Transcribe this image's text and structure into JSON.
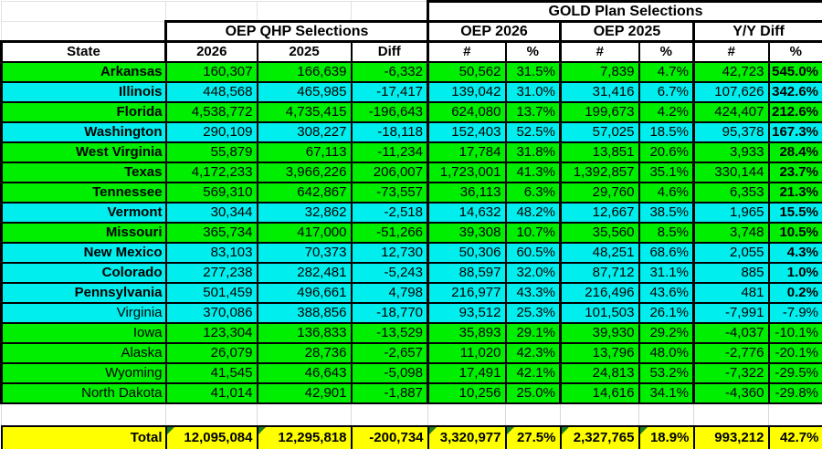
{
  "table": {
    "title_gold": "GOLD Plan Selections",
    "group_headers": {
      "oep_qhp": "OEP QHP Selections",
      "oep_2026": "OEP 2026",
      "oep_2025": "OEP 2025",
      "yy_diff": "Y/Y Diff"
    },
    "column_headers": {
      "state": "State",
      "y2026": "2026",
      "y2025": "2025",
      "diff": "Diff",
      "num": "#",
      "pct": "%"
    },
    "colors": {
      "row_green": "#00ef00",
      "row_cyan": "#00eeee",
      "total_yellow": "#ffff00",
      "corner_indicator_green": "#1b7a26",
      "border_black": "#000000"
    },
    "rows": [
      {
        "state": "Arkansas",
        "color": "green",
        "bold": true,
        "qhp26": "160,307",
        "qhp25": "166,639",
        "diff": "-6,332",
        "g26n": "50,562",
        "g26p": "31.5%",
        "g25n": "7,839",
        "g25p": "4.7%",
        "yyn": "42,723",
        "yyp": "545.0%"
      },
      {
        "state": "Illinois",
        "color": "cyan",
        "bold": true,
        "qhp26": "448,568",
        "qhp25": "465,985",
        "diff": "-17,417",
        "g26n": "139,042",
        "g26p": "31.0%",
        "g25n": "31,416",
        "g25p": "6.7%",
        "yyn": "107,626",
        "yyp": "342.6%"
      },
      {
        "state": "Florida",
        "color": "green",
        "bold": true,
        "qhp26": "4,538,772",
        "qhp25": "4,735,415",
        "diff": "-196,643",
        "g26n": "624,080",
        "g26p": "13.7%",
        "g25n": "199,673",
        "g25p": "4.2%",
        "yyn": "424,407",
        "yyp": "212.6%"
      },
      {
        "state": "Washington",
        "color": "cyan",
        "bold": true,
        "qhp26": "290,109",
        "qhp25": "308,227",
        "diff": "-18,118",
        "g26n": "152,403",
        "g26p": "52.5%",
        "g25n": "57,025",
        "g25p": "18.5%",
        "yyn": "95,378",
        "yyp": "167.3%"
      },
      {
        "state": "West Virginia",
        "color": "green",
        "bold": true,
        "qhp26": "55,879",
        "qhp25": "67,113",
        "diff": "-11,234",
        "g26n": "17,784",
        "g26p": "31.8%",
        "g25n": "13,851",
        "g25p": "20.6%",
        "yyn": "3,933",
        "yyp": "28.4%"
      },
      {
        "state": "Texas",
        "color": "green",
        "bold": true,
        "qhp26": "4,172,233",
        "qhp25": "3,966,226",
        "diff": "206,007",
        "g26n": "1,723,001",
        "g26p": "41.3%",
        "g25n": "1,392,857",
        "g25p": "35.1%",
        "yyn": "330,144",
        "yyp": "23.7%"
      },
      {
        "state": "Tennessee",
        "color": "green",
        "bold": true,
        "qhp26": "569,310",
        "qhp25": "642,867",
        "diff": "-73,557",
        "g26n": "36,113",
        "g26p": "6.3%",
        "g25n": "29,760",
        "g25p": "4.6%",
        "yyn": "6,353",
        "yyp": "21.3%"
      },
      {
        "state": "Vermont",
        "color": "cyan",
        "bold": true,
        "qhp26": "30,344",
        "qhp25": "32,862",
        "diff": "-2,518",
        "g26n": "14,632",
        "g26p": "48.2%",
        "g25n": "12,667",
        "g25p": "38.5%",
        "yyn": "1,965",
        "yyp": "15.5%"
      },
      {
        "state": "Missouri",
        "color": "green",
        "bold": true,
        "qhp26": "365,734",
        "qhp25": "417,000",
        "diff": "-51,266",
        "g26n": "39,308",
        "g26p": "10.7%",
        "g25n": "35,560",
        "g25p": "8.5%",
        "yyn": "3,748",
        "yyp": "10.5%"
      },
      {
        "state": "New Mexico",
        "color": "cyan",
        "bold": true,
        "qhp26": "83,103",
        "qhp25": "70,373",
        "diff": "12,730",
        "g26n": "50,306",
        "g26p": "60.5%",
        "g25n": "48,251",
        "g25p": "68.6%",
        "yyn": "2,055",
        "yyp": "4.3%"
      },
      {
        "state": "Colorado",
        "color": "cyan",
        "bold": true,
        "qhp26": "277,238",
        "qhp25": "282,481",
        "diff": "-5,243",
        "g26n": "88,597",
        "g26p": "32.0%",
        "g25n": "87,712",
        "g25p": "31.1%",
        "yyn": "885",
        "yyp": "1.0%"
      },
      {
        "state": "Pennsylvania",
        "color": "cyan",
        "bold": true,
        "qhp26": "501,459",
        "qhp25": "496,661",
        "diff": "4,798",
        "g26n": "216,977",
        "g26p": "43.3%",
        "g25n": "216,496",
        "g25p": "43.6%",
        "yyn": "481",
        "yyp": "0.2%"
      },
      {
        "state": "Virginia",
        "color": "cyan",
        "bold": false,
        "qhp26": "370,086",
        "qhp25": "388,856",
        "diff": "-18,770",
        "g26n": "93,512",
        "g26p": "25.3%",
        "g25n": "101,503",
        "g25p": "26.1%",
        "yyn": "-7,991",
        "yyp": "-7.9%"
      },
      {
        "state": "Iowa",
        "color": "green",
        "bold": false,
        "qhp26": "123,304",
        "qhp25": "136,833",
        "diff": "-13,529",
        "g26n": "35,893",
        "g26p": "29.1%",
        "g25n": "39,930",
        "g25p": "29.2%",
        "yyn": "-4,037",
        "yyp": "-10.1%"
      },
      {
        "state": "Alaska",
        "color": "green",
        "bold": false,
        "qhp26": "26,079",
        "qhp25": "28,736",
        "diff": "-2,657",
        "g26n": "11,020",
        "g26p": "42.3%",
        "g25n": "13,796",
        "g25p": "48.0%",
        "yyn": "-2,776",
        "yyp": "-20.1%"
      },
      {
        "state": "Wyoming",
        "color": "green",
        "bold": false,
        "qhp26": "41,545",
        "qhp25": "46,643",
        "diff": "-5,098",
        "g26n": "17,491",
        "g26p": "42.1%",
        "g25n": "24,813",
        "g25p": "53.2%",
        "yyn": "-7,322",
        "yyp": "-29.5%"
      },
      {
        "state": "North Dakota",
        "color": "green",
        "bold": false,
        "qhp26": "41,014",
        "qhp25": "42,901",
        "diff": "-1,887",
        "g26n": "10,256",
        "g26p": "25.0%",
        "g25n": "14,616",
        "g25p": "34.1%",
        "yyn": "-4,360",
        "yyp": "-29.8%"
      }
    ],
    "total": {
      "label": "Total",
      "qhp26": "12,095,084",
      "qhp25": "12,295,818",
      "diff": "-200,734",
      "g26n": "3,320,977",
      "g26p": "27.5%",
      "g25n": "2,327,765",
      "g25p": "18.9%",
      "yyn": "993,212",
      "yyp": "42.7%",
      "triangles": [
        "qhp26",
        "qhp25",
        "g26n",
        "g26p",
        "g25n",
        "g25p"
      ]
    }
  }
}
